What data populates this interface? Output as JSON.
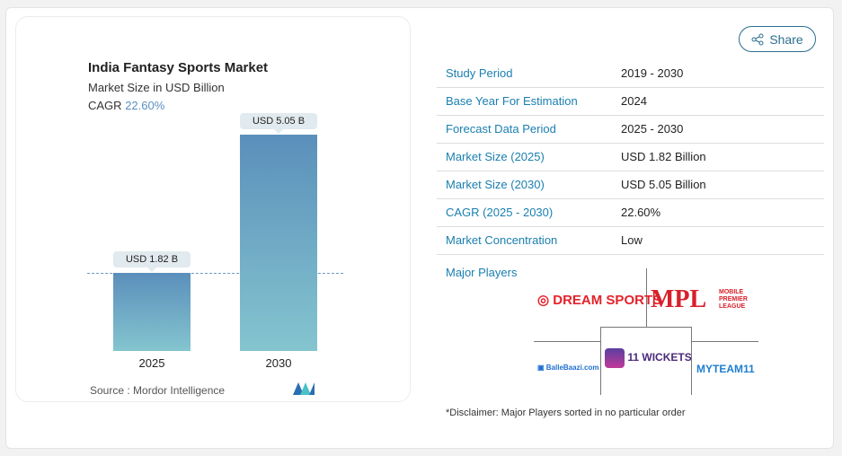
{
  "chart": {
    "title": "India Fantasy Sports Market",
    "subtitle": "Market Size in USD Billion",
    "cagr_label": "CAGR",
    "cagr_value": "22.60%",
    "source": "Source :  Mordor Intelligence"
  },
  "chart_data": {
    "type": "bar",
    "categories": [
      "2025",
      "2030"
    ],
    "values": [
      1.82,
      5.05
    ],
    "data_labels": [
      "USD 1.82 B",
      "USD 5.05 B"
    ],
    "title": "India Fantasy Sports Market",
    "subtitle": "Market Size in USD Billion",
    "colors": [
      "#5b8fbb",
      "#84c5cf"
    ]
  },
  "share": {
    "label": "Share",
    "icon": "share-icon"
  },
  "table": [
    {
      "k": "Study Period",
      "v": "2019 - 2030"
    },
    {
      "k": "Base Year For Estimation",
      "v": "2024"
    },
    {
      "k": "Forecast Data Period",
      "v": "2025 - 2030"
    },
    {
      "k": "Market Size (2025)",
      "v": "USD 1.82 Billion"
    },
    {
      "k": "Market Size (2030)",
      "v": "USD 5.05 Billion"
    },
    {
      "k": "CAGR (2025 - 2030)",
      "v": "22.60%"
    },
    {
      "k": "Market Concentration",
      "v": "Low"
    }
  ],
  "major_players": {
    "label": "Major Players",
    "players": [
      "DREAM SPORTS",
      "MPL",
      "BalleBaazi.com",
      "11 WICKETS",
      "MYTEAM11"
    ],
    "mpl_sub": "MOBILE PREMIER LEAGUE"
  },
  "disclaimer": "*Disclaimer: Major Players sorted in no particular order"
}
